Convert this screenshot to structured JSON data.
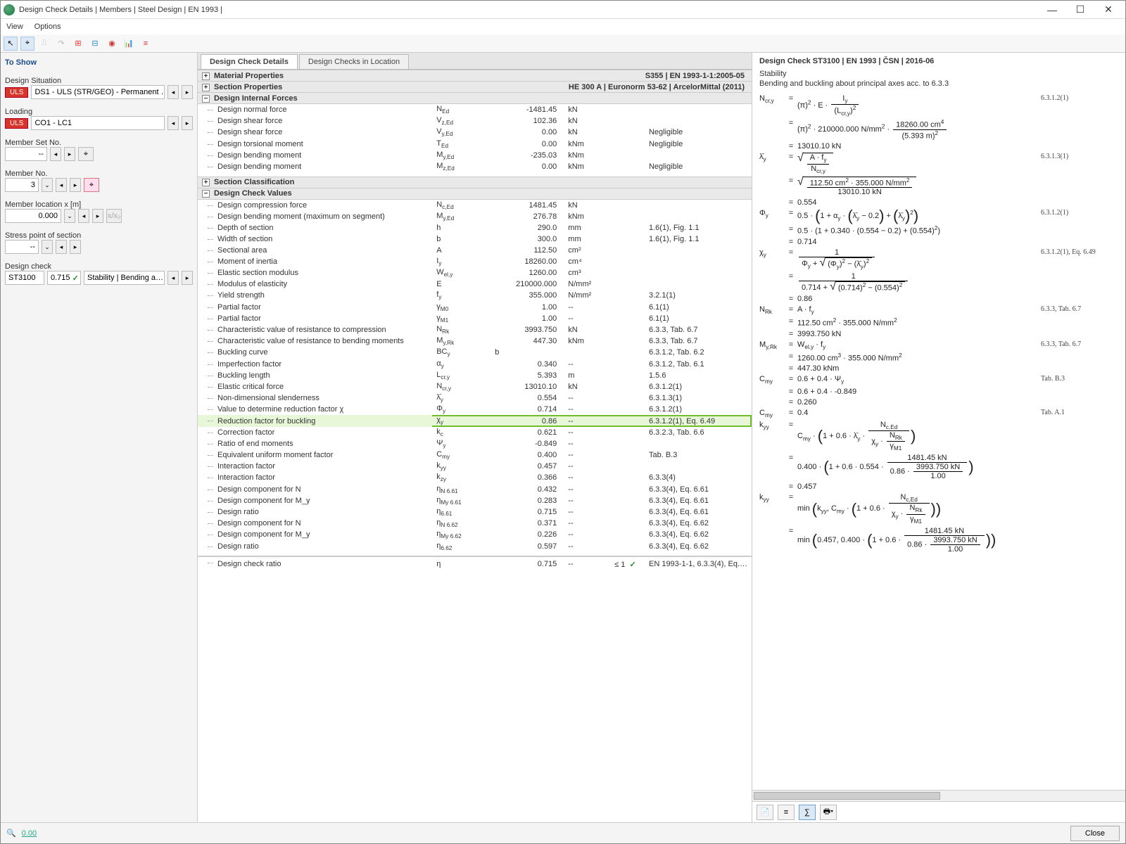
{
  "window": {
    "title": "Design Check Details | Members | Steel Design | EN 1993 |"
  },
  "menu": [
    "View",
    "Options"
  ],
  "left": {
    "header": "To Show",
    "situation_label": "Design Situation",
    "situation_badge": "ULS",
    "situation_text": "DS1 - ULS (STR/GEO) - Permanent …",
    "loading_label": "Loading",
    "loading_badge": "ULS",
    "loading_text": "CO1 - LC1",
    "memberset_label": "Member Set No.",
    "memberset_value": "--",
    "memberno_label": "Member No.",
    "memberno_value": "3",
    "memberloc_label": "Member location x [m]",
    "memberloc_value": "0.000",
    "memberloc_extra": "x/x₀",
    "stress_label": "Stress point of section",
    "stress_value": "--",
    "designcheck_label": "Design check",
    "dc_code": "ST3100",
    "dc_ratio": "0.715",
    "dc_desc": "Stability | Bending a…"
  },
  "tabs": [
    "Design Check Details",
    "Design Checks in Location"
  ],
  "groups": {
    "g1": {
      "title": "Material Properties",
      "info": "S355 | EN 1993-1-1:2005-05"
    },
    "g2": {
      "title": "Section Properties",
      "info": "HE 300 A | Euronorm 53-62 | ArcelorMittal (2011)"
    },
    "g3": {
      "title": "Design Internal Forces"
    },
    "g3rows": [
      {
        "name": "Design normal force",
        "sym": "N_Ed",
        "val": "-1481.45",
        "unit": "kN",
        "ref": ""
      },
      {
        "name": "Design shear force",
        "sym": "V_z,Ed",
        "val": "102.36",
        "unit": "kN",
        "ref": ""
      },
      {
        "name": "Design shear force",
        "sym": "V_y,Ed",
        "val": "0.00",
        "unit": "kN",
        "ref": "Negligible"
      },
      {
        "name": "Design torsional moment",
        "sym": "T_Ed",
        "val": "0.00",
        "unit": "kNm",
        "ref": "Negligible"
      },
      {
        "name": "Design bending moment",
        "sym": "M_y,Ed",
        "val": "-235.03",
        "unit": "kNm",
        "ref": ""
      },
      {
        "name": "Design bending moment",
        "sym": "M_z,Ed",
        "val": "0.00",
        "unit": "kNm",
        "ref": "Negligible"
      }
    ],
    "g4": {
      "title": "Section Classification"
    },
    "g5": {
      "title": "Design Check Values"
    },
    "g5rows": [
      {
        "name": "Design compression force",
        "sym": "N_c,Ed",
        "val": "1481.45",
        "unit": "kN",
        "ref": ""
      },
      {
        "name": "Design bending moment (maximum on segment)",
        "sym": "M_y,Ed",
        "val": "276.78",
        "unit": "kNm",
        "ref": ""
      },
      {
        "name": "Depth of section",
        "sym": "h",
        "val": "290.0",
        "unit": "mm",
        "ref": "1.6(1), Fig. 1.1"
      },
      {
        "name": "Width of section",
        "sym": "b",
        "val": "300.0",
        "unit": "mm",
        "ref": "1.6(1), Fig. 1.1"
      },
      {
        "name": "Sectional area",
        "sym": "A",
        "val": "112.50",
        "unit": "cm²",
        "ref": ""
      },
      {
        "name": "Moment of inertia",
        "sym": "I_y",
        "val": "18260.00",
        "unit": "cm⁴",
        "ref": ""
      },
      {
        "name": "Elastic section modulus",
        "sym": "W_el,y",
        "val": "1260.00",
        "unit": "cm³",
        "ref": ""
      },
      {
        "name": "Modulus of elasticity",
        "sym": "E",
        "val": "210000.000",
        "unit": "N/mm²",
        "ref": ""
      },
      {
        "name": "Yield strength",
        "sym": "f_y",
        "val": "355.000",
        "unit": "N/mm²",
        "ref": "3.2.1(1)"
      },
      {
        "name": "Partial factor",
        "sym": "γ_M0",
        "val": "1.00",
        "unit": "--",
        "ref": "6.1(1)"
      },
      {
        "name": "Partial factor",
        "sym": "γ_M1",
        "val": "1.00",
        "unit": "--",
        "ref": "6.1(1)"
      },
      {
        "name": "Characteristic value of resistance to compression",
        "sym": "N_Rk",
        "val": "3993.750",
        "unit": "kN",
        "ref": "6.3.3, Tab. 6.7"
      },
      {
        "name": "Characteristic value of resistance to bending moments",
        "sym": "M_y,Rk",
        "val": "447.30",
        "unit": "kNm",
        "ref": "6.3.3, Tab. 6.7"
      },
      {
        "name": "Buckling curve",
        "sym": "BC_y",
        "val": "b",
        "unit": "",
        "ref": "6.3.1.2, Tab. 6.2",
        "textval": true
      },
      {
        "name": "Imperfection factor",
        "sym": "α_y",
        "val": "0.340",
        "unit": "--",
        "ref": "6.3.1.2, Tab. 6.1"
      },
      {
        "name": "Buckling length",
        "sym": "L_cr,y",
        "val": "5.393",
        "unit": "m",
        "ref": "1.5.6"
      },
      {
        "name": "Elastic critical force",
        "sym": "N_cr,y",
        "val": "13010.10",
        "unit": "kN",
        "ref": "6.3.1.2(1)"
      },
      {
        "name": "Non-dimensional slenderness",
        "sym": "λ̄_y",
        "val": "0.554",
        "unit": "--",
        "ref": "6.3.1.3(1)"
      },
      {
        "name": "Value to determine reduction factor χ",
        "sym": "Φ_y",
        "val": "0.714",
        "unit": "--",
        "ref": "6.3.1.2(1)"
      },
      {
        "name": "Reduction factor for buckling",
        "sym": "χ_y",
        "val": "0.86",
        "unit": "--",
        "ref": "6.3.1.2(1), Eq. 6.49",
        "hl": true
      },
      {
        "name": "Correction factor",
        "sym": "k_c",
        "val": "0.621",
        "unit": "--",
        "ref": "6.3.2.3, Tab. 6.6"
      },
      {
        "name": "Ratio of end moments",
        "sym": "Ψ_y",
        "val": "-0.849",
        "unit": "--",
        "ref": ""
      },
      {
        "name": "Equivalent uniform moment factor",
        "sym": "C_my",
        "val": "0.400",
        "unit": "--",
        "ref": "Tab. B.3"
      },
      {
        "name": "Interaction factor",
        "sym": "k_yy",
        "val": "0.457",
        "unit": "--",
        "ref": ""
      },
      {
        "name": "Interaction factor",
        "sym": "k_zy",
        "val": "0.366",
        "unit": "--",
        "ref": "6.3.3(4)"
      },
      {
        "name": "Design component for N",
        "sym": "η_N 6.61",
        "val": "0.432",
        "unit": "--",
        "ref": "6.3.3(4), Eq. 6.61"
      },
      {
        "name": "Design component for M_y",
        "sym": "η_My 6.61",
        "val": "0.283",
        "unit": "--",
        "ref": "6.3.3(4), Eq. 6.61"
      },
      {
        "name": "Design ratio",
        "sym": "η_6.61",
        "val": "0.715",
        "unit": "--",
        "ref": "6.3.3(4), Eq. 6.61"
      },
      {
        "name": "Design component for N",
        "sym": "η_N 6.62",
        "val": "0.371",
        "unit": "--",
        "ref": "6.3.3(4), Eq. 6.62"
      },
      {
        "name": "Design component for M_y",
        "sym": "η_My 6.62",
        "val": "0.226",
        "unit": "--",
        "ref": "6.3.3(4), Eq. 6.62"
      },
      {
        "name": "Design ratio",
        "sym": "η_6.62",
        "val": "0.597",
        "unit": "--",
        "ref": "6.3.3(4), Eq. 6.62"
      }
    ],
    "final": {
      "name": "Design check ratio",
      "sym": "η",
      "val": "0.715",
      "unit": "--",
      "limit": "≤ 1",
      "ref": "EN 1993-1-1, 6.3.3(4), Eq.…"
    }
  },
  "right": {
    "header": "Design Check ST3100 | EN 1993 | ČSN | 2016-06",
    "sub1": "Stability",
    "sub2": "Bending and buckling about principal axes acc. to 6.3.3"
  },
  "close": "Close"
}
